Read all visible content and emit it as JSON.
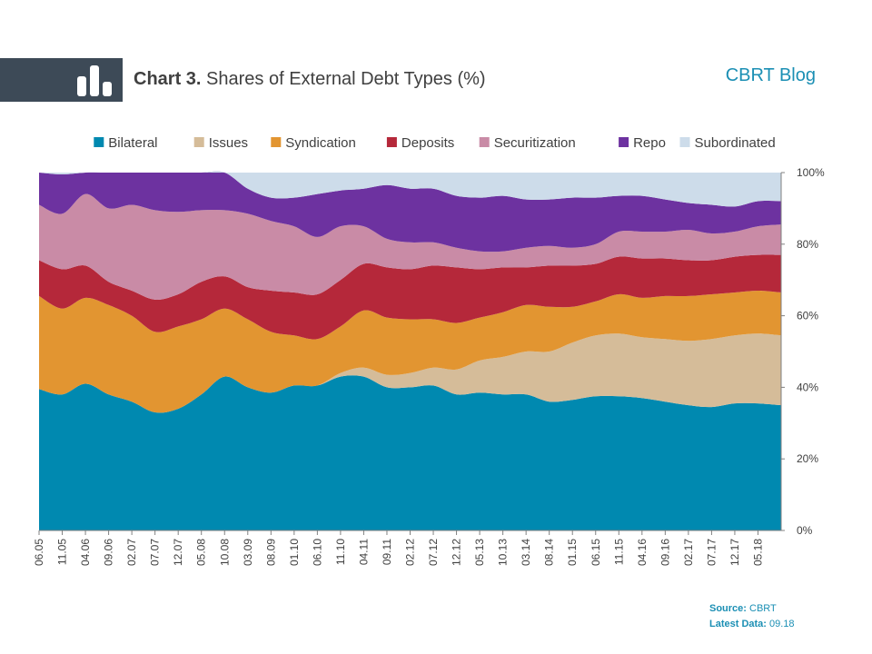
{
  "header": {
    "title_bold": "Chart 3.",
    "title_rest": " Shares of External Debt Types (%)",
    "brand": "CBRT Blog",
    "icon": "bar-chart-icon"
  },
  "footer": {
    "source_label": "Source:",
    "source_value": " CBRT",
    "latest_label": "Latest Data:",
    "latest_value": " 09.18"
  },
  "colors": {
    "header_bar": "#3d4a57",
    "brand": "#1b8fb4"
  },
  "chart_data": {
    "type": "area",
    "stacked": true,
    "title": "Shares of External Debt Types (%)",
    "legend_position": "top",
    "grid": false,
    "y_axis_position": "right",
    "ylim": [
      0,
      100
    ],
    "yticks": [
      "0%",
      "20%",
      "40%",
      "60%",
      "80%",
      "100%"
    ],
    "xticks": [
      "06.05",
      "11.05",
      "04.06",
      "09.06",
      "02.07",
      "07.07",
      "12.07",
      "05.08",
      "10.08",
      "03.09",
      "08.09",
      "01.10",
      "06.10",
      "11.10",
      "04.11",
      "09.11",
      "02.12",
      "07.12",
      "12.12",
      "05.13",
      "10.13",
      "03.14",
      "08.14",
      "01.15",
      "06.15",
      "11.15",
      "04.16",
      "09.16",
      "02.17",
      "07.17",
      "12.17",
      "05.18"
    ],
    "x": [
      "06.05",
      "11.05",
      "04.06",
      "09.06",
      "02.07",
      "07.07",
      "12.07",
      "05.08",
      "10.08",
      "03.09",
      "08.09",
      "01.10",
      "06.10",
      "11.10",
      "04.11",
      "09.11",
      "02.12",
      "07.12",
      "12.12",
      "05.13",
      "10.13",
      "03.14",
      "08.14",
      "01.15",
      "06.15",
      "11.15",
      "04.16",
      "09.16",
      "02.17",
      "07.17",
      "12.17",
      "05.18",
      "09.18"
    ],
    "series": [
      {
        "name": "Bilateral",
        "color": "#0089b0",
        "values": [
          39.5,
          38,
          41,
          38,
          36,
          33,
          34,
          38,
          43,
          40,
          38.5,
          40.5,
          40.5,
          43,
          43,
          40,
          40,
          40.5,
          38,
          38.5,
          38,
          38,
          36,
          36.5,
          37.5,
          37.5,
          37,
          36,
          35,
          34.5,
          35.5,
          35.5,
          35
        ]
      },
      {
        "name": "Issues",
        "color": "#d5bc99",
        "values": [
          0,
          0,
          0,
          0,
          0,
          0,
          0,
          0,
          0,
          0,
          0,
          0,
          0,
          1,
          2.5,
          3.5,
          4,
          5,
          7,
          9,
          10.5,
          12,
          14,
          16,
          17,
          17.5,
          17,
          17.5,
          18,
          19,
          19,
          19.5,
          19.5
        ]
      },
      {
        "name": "Syndication",
        "color": "#e29531",
        "values": [
          26,
          24,
          24,
          25,
          24,
          22.5,
          23,
          21,
          19,
          19,
          17,
          14,
          13,
          13,
          16,
          16,
          15,
          13.5,
          13,
          12,
          12.5,
          13,
          12.5,
          10,
          9.5,
          11,
          11,
          12,
          12.5,
          12.5,
          12,
          12,
          12
        ]
      },
      {
        "name": "Deposits",
        "color": "#b5283a",
        "values": [
          10,
          11,
          9,
          6.5,
          7,
          9,
          9,
          10.5,
          9,
          9,
          11.5,
          12,
          12.5,
          13,
          13,
          14,
          14,
          15,
          15.5,
          13.5,
          12.5,
          10.5,
          11.5,
          11.5,
          10.5,
          10.5,
          11,
          10.5,
          10,
          9.5,
          10,
          10,
          10.5
        ]
      },
      {
        "name": "Securitization",
        "color": "#c98ba6",
        "values": [
          15.5,
          15.5,
          20,
          20.5,
          24,
          25,
          23,
          20,
          18.5,
          20.5,
          19.5,
          18.5,
          16,
          15,
          10.5,
          8,
          7.5,
          6.5,
          5.5,
          5,
          4.5,
          5.5,
          5.5,
          5,
          5.5,
          7,
          7.5,
          7.5,
          8.5,
          7.5,
          7,
          8,
          8.5
        ]
      },
      {
        "name": "Repo",
        "color": "#6d32a0",
        "values": [
          9,
          11,
          6,
          10,
          9,
          10.5,
          11,
          10.5,
          10.5,
          7,
          6.5,
          8,
          12,
          10,
          10.5,
          15,
          15,
          15,
          14.5,
          15,
          15.5,
          13.5,
          13,
          14,
          13,
          10,
          10,
          9,
          7.5,
          8,
          7,
          7,
          6.5
        ]
      },
      {
        "name": "Subordinated",
        "color": "#cddcea",
        "values": [
          0,
          0.5,
          0,
          0,
          0,
          0,
          0,
          0,
          0,
          4.5,
          7,
          7,
          6,
          5,
          4.5,
          3.5,
          4.5,
          4.5,
          6.5,
          7,
          6.5,
          7.5,
          7.5,
          7,
          7,
          6.5,
          6.5,
          7.5,
          8.5,
          9,
          9.5,
          8,
          8
        ]
      }
    ]
  }
}
